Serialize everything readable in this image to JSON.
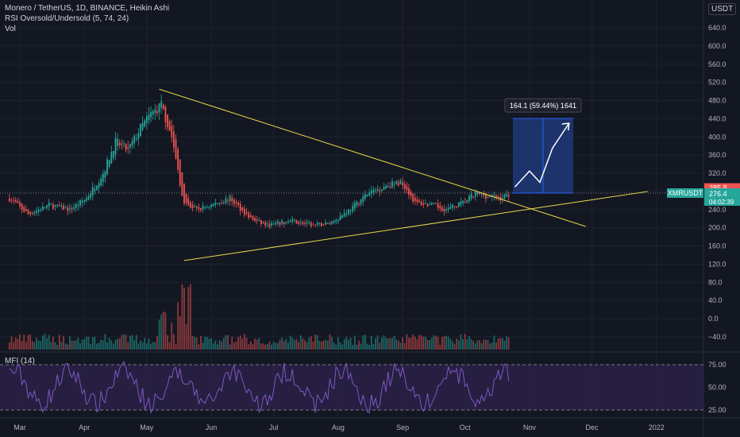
{
  "header": {
    "title": "Monero / TetherUS, 1D, BINANCE, Heikin Ashi",
    "indicator": "RSI Oversold/Undersold (5, 74, 24)",
    "volume": "Vol",
    "currency": "USDT"
  },
  "mfi": {
    "label": "MFI (14)",
    "ticks": [
      "75.00",
      "50.00",
      "25.00"
    ]
  },
  "price_badges": {
    "high": "285.8",
    "symbol": "XMRUSDT",
    "last": "276.4",
    "countdown": "04:02:39"
  },
  "projection": {
    "label": "164.1 (59.44%) 1641"
  },
  "colors": {
    "background": "#131722",
    "up": "#26a69a",
    "down": "#ef5350",
    "trendline": "#e8d94c",
    "projection_fill": "#1e3a78",
    "mfi_line": "#7e57c2",
    "mfi_band": "#2a2146"
  },
  "chart_data": {
    "type": "candlestick",
    "y_ticks": [
      "640.0",
      "600.0",
      "560.0",
      "520.0",
      "480.0",
      "440.0",
      "400.0",
      "360.0",
      "320.0",
      "280.0",
      "240.0",
      "200.0",
      "160.0",
      "120.0",
      "80.0",
      "40.0",
      "0.0",
      "−40.0"
    ],
    "x_ticks": [
      "Mar",
      "Apr",
      "May",
      "Jun",
      "Jul",
      "Aug",
      "Sep",
      "Oct",
      "Nov",
      "Dec",
      "2022"
    ],
    "price_path": [
      [
        "2021-02-24",
        265
      ],
      [
        "2021-03-05",
        230
      ],
      [
        "2021-03-15",
        250
      ],
      [
        "2021-03-25",
        240
      ],
      [
        "2021-04-02",
        265
      ],
      [
        "2021-04-10",
        320
      ],
      [
        "2021-04-16",
        390
      ],
      [
        "2021-04-22",
        370
      ],
      [
        "2021-04-28",
        420
      ],
      [
        "2021-05-03",
        450
      ],
      [
        "2021-05-08",
        470
      ],
      [
        "2021-05-13",
        400
      ],
      [
        "2021-05-19",
        250
      ],
      [
        "2021-05-25",
        240
      ],
      [
        "2021-06-01",
        250
      ],
      [
        "2021-06-10",
        265
      ],
      [
        "2021-06-20",
        220
      ],
      [
        "2021-06-28",
        205
      ],
      [
        "2021-07-10",
        215
      ],
      [
        "2021-07-20",
        205
      ],
      [
        "2021-07-28",
        210
      ],
      [
        "2021-08-08",
        245
      ],
      [
        "2021-08-15",
        275
      ],
      [
        "2021-08-25",
        295
      ],
      [
        "2021-09-01",
        300
      ],
      [
        "2021-09-07",
        255
      ],
      [
        "2021-09-15",
        250
      ],
      [
        "2021-09-22",
        240
      ],
      [
        "2021-09-30",
        255
      ],
      [
        "2021-10-06",
        275
      ],
      [
        "2021-10-12",
        270
      ],
      [
        "2021-10-18",
        265
      ],
      [
        "2021-10-23",
        276
      ]
    ],
    "projection": {
      "from": 276.4,
      "to": 440.5,
      "change": 164.1,
      "percent": 59.44
    },
    "trendlines": [
      {
        "name": "",
        "from": [
          "2021-05-07",
          505
        ],
        "to": [
          "2021-11-28",
          203
        ]
      },
      {
        "name": "",
        "from": [
          "2021-05-19",
          128
        ],
        "to": [
          "2021-12-28",
          280
        ]
      }
    ],
    "mfi_levels": [
      75,
      25
    ]
  }
}
